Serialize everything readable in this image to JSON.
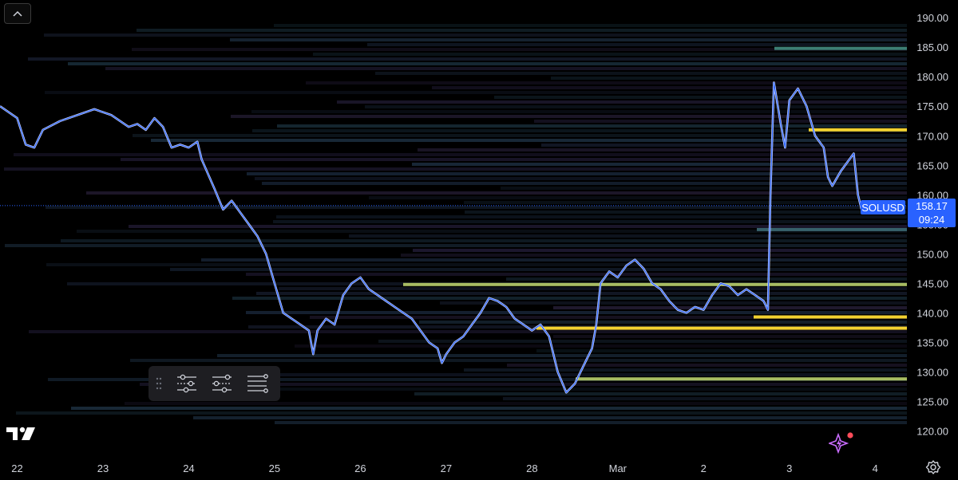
{
  "chart_data": {
    "type": "line",
    "title": "",
    "symbol_label": "SOLUSD",
    "last_price": 158.17,
    "last_price_label": "158.17",
    "countdown_label": "09:24",
    "ylim": [
      116,
      193
    ],
    "y_ticks": [
      {
        "value": 190,
        "label": "190.00"
      },
      {
        "value": 185,
        "label": "185.00"
      },
      {
        "value": 180,
        "label": "180.00"
      },
      {
        "value": 175,
        "label": "175.00"
      },
      {
        "value": 170,
        "label": "170.00"
      },
      {
        "value": 165,
        "label": "165.00"
      },
      {
        "value": 160,
        "label": "160.00"
      },
      {
        "value": 155,
        "label": "155.00"
      },
      {
        "value": 150,
        "label": "150.00"
      },
      {
        "value": 145,
        "label": "145.00"
      },
      {
        "value": 140,
        "label": "140.00"
      },
      {
        "value": 135,
        "label": "135.00"
      },
      {
        "value": 130,
        "label": "130.00"
      },
      {
        "value": 125,
        "label": "125.00"
      },
      {
        "value": 120,
        "label": "120.00"
      }
    ],
    "x_ticks": [
      {
        "day": 0,
        "label": "22"
      },
      {
        "day": 1,
        "label": "23"
      },
      {
        "day": 2,
        "label": "24"
      },
      {
        "day": 3,
        "label": "25"
      },
      {
        "day": 4,
        "label": "26"
      },
      {
        "day": 5,
        "label": "27"
      },
      {
        "day": 6,
        "label": "28"
      },
      {
        "day": 7,
        "label": "Mar"
      },
      {
        "day": 8,
        "label": "2"
      },
      {
        "day": 9,
        "label": "3"
      },
      {
        "day": 10,
        "label": "4"
      }
    ],
    "xlim": [
      -0.2,
      10.37
    ],
    "series": [
      {
        "color": "#2962ff",
        "points": [
          [
            -0.2,
            175
          ],
          [
            0.0,
            173
          ],
          [
            0.1,
            168.5
          ],
          [
            0.2,
            168
          ],
          [
            0.3,
            171
          ],
          [
            0.5,
            172.5
          ],
          [
            0.7,
            173.5
          ],
          [
            0.9,
            174.5
          ],
          [
            1.1,
            173.5
          ],
          [
            1.3,
            171.5
          ],
          [
            1.4,
            172
          ],
          [
            1.5,
            171
          ],
          [
            1.6,
            173
          ],
          [
            1.7,
            171.5
          ],
          [
            1.8,
            168
          ],
          [
            1.9,
            168.5
          ],
          [
            2.0,
            168
          ],
          [
            2.1,
            169
          ],
          [
            2.15,
            166
          ],
          [
            2.3,
            161
          ],
          [
            2.4,
            157.5
          ],
          [
            2.5,
            159
          ],
          [
            2.6,
            157
          ],
          [
            2.7,
            155
          ],
          [
            2.8,
            153
          ],
          [
            2.9,
            150
          ],
          [
            3.0,
            145
          ],
          [
            3.1,
            140
          ],
          [
            3.2,
            139
          ],
          [
            3.3,
            138
          ],
          [
            3.4,
            137
          ],
          [
            3.45,
            133
          ],
          [
            3.5,
            137
          ],
          [
            3.6,
            139
          ],
          [
            3.7,
            138
          ],
          [
            3.8,
            143
          ],
          [
            3.9,
            145
          ],
          [
            4.0,
            146
          ],
          [
            4.1,
            144
          ],
          [
            4.2,
            143
          ],
          [
            4.3,
            142
          ],
          [
            4.4,
            141
          ],
          [
            4.5,
            140
          ],
          [
            4.6,
            139
          ],
          [
            4.7,
            137
          ],
          [
            4.8,
            135
          ],
          [
            4.9,
            134
          ],
          [
            4.95,
            131.5
          ],
          [
            5.0,
            133
          ],
          [
            5.1,
            135
          ],
          [
            5.2,
            136
          ],
          [
            5.3,
            138
          ],
          [
            5.4,
            140
          ],
          [
            5.5,
            142.5
          ],
          [
            5.6,
            142
          ],
          [
            5.7,
            141
          ],
          [
            5.8,
            139
          ],
          [
            5.9,
            138
          ],
          [
            6.0,
            137
          ],
          [
            6.1,
            138
          ],
          [
            6.2,
            136
          ],
          [
            6.3,
            130
          ],
          [
            6.4,
            126.5
          ],
          [
            6.5,
            128
          ],
          [
            6.6,
            131
          ],
          [
            6.7,
            134
          ],
          [
            6.75,
            138
          ],
          [
            6.8,
            145
          ],
          [
            6.9,
            147
          ],
          [
            7.0,
            146
          ],
          [
            7.1,
            148
          ],
          [
            7.2,
            149
          ],
          [
            7.3,
            147.5
          ],
          [
            7.4,
            145
          ],
          [
            7.5,
            144
          ],
          [
            7.6,
            142
          ],
          [
            7.7,
            140.5
          ],
          [
            7.8,
            140
          ],
          [
            7.9,
            141
          ],
          [
            8.0,
            140.5
          ],
          [
            8.1,
            143
          ],
          [
            8.2,
            145
          ],
          [
            8.3,
            144.5
          ],
          [
            8.4,
            143
          ],
          [
            8.5,
            144
          ],
          [
            8.6,
            143
          ],
          [
            8.7,
            142
          ],
          [
            8.75,
            140.5
          ],
          [
            8.78,
            160
          ],
          [
            8.82,
            179
          ],
          [
            8.9,
            172
          ],
          [
            8.95,
            168
          ],
          [
            9.0,
            176
          ],
          [
            9.1,
            178
          ],
          [
            9.2,
            175
          ],
          [
            9.3,
            170
          ],
          [
            9.4,
            168
          ],
          [
            9.45,
            163
          ],
          [
            9.5,
            161.5
          ],
          [
            9.6,
            164
          ],
          [
            9.7,
            166
          ],
          [
            9.75,
            167
          ],
          [
            9.8,
            160
          ],
          [
            9.85,
            157
          ],
          [
            9.9,
            158.17
          ]
        ]
      }
    ],
    "zones": [
      {
        "level": 171,
        "color": "#f1d130"
      },
      {
        "level": 139.3,
        "color": "#f1d130"
      },
      {
        "level": 137.4,
        "color": "#f1d130"
      },
      {
        "level": 128.8,
        "color": "#a8bc62"
      },
      {
        "level": 144.8,
        "color": "#a8bc62"
      },
      {
        "level": 184.8,
        "color": "#3d7e74"
      },
      {
        "level": 154.1,
        "color": "#37606a"
      }
    ],
    "grid": false,
    "legend": "none"
  },
  "colors": {
    "background": "#000000",
    "price_tag": "#2962ff",
    "price_line": "#2962ff",
    "ai_button": "#c96cff",
    "ai_dot": "#ff4c5a"
  },
  "icons": {
    "collapse": "chevron-up-icon",
    "grip": "drag-handle-icon",
    "tool_1": "levels-settings-icon",
    "tool_2": "levels-dashed-icon",
    "tool_3": "levels-lines-icon",
    "logo": "tradingview-logo",
    "ai": "sparkle-ai-icon",
    "settings": "gear-icon"
  }
}
